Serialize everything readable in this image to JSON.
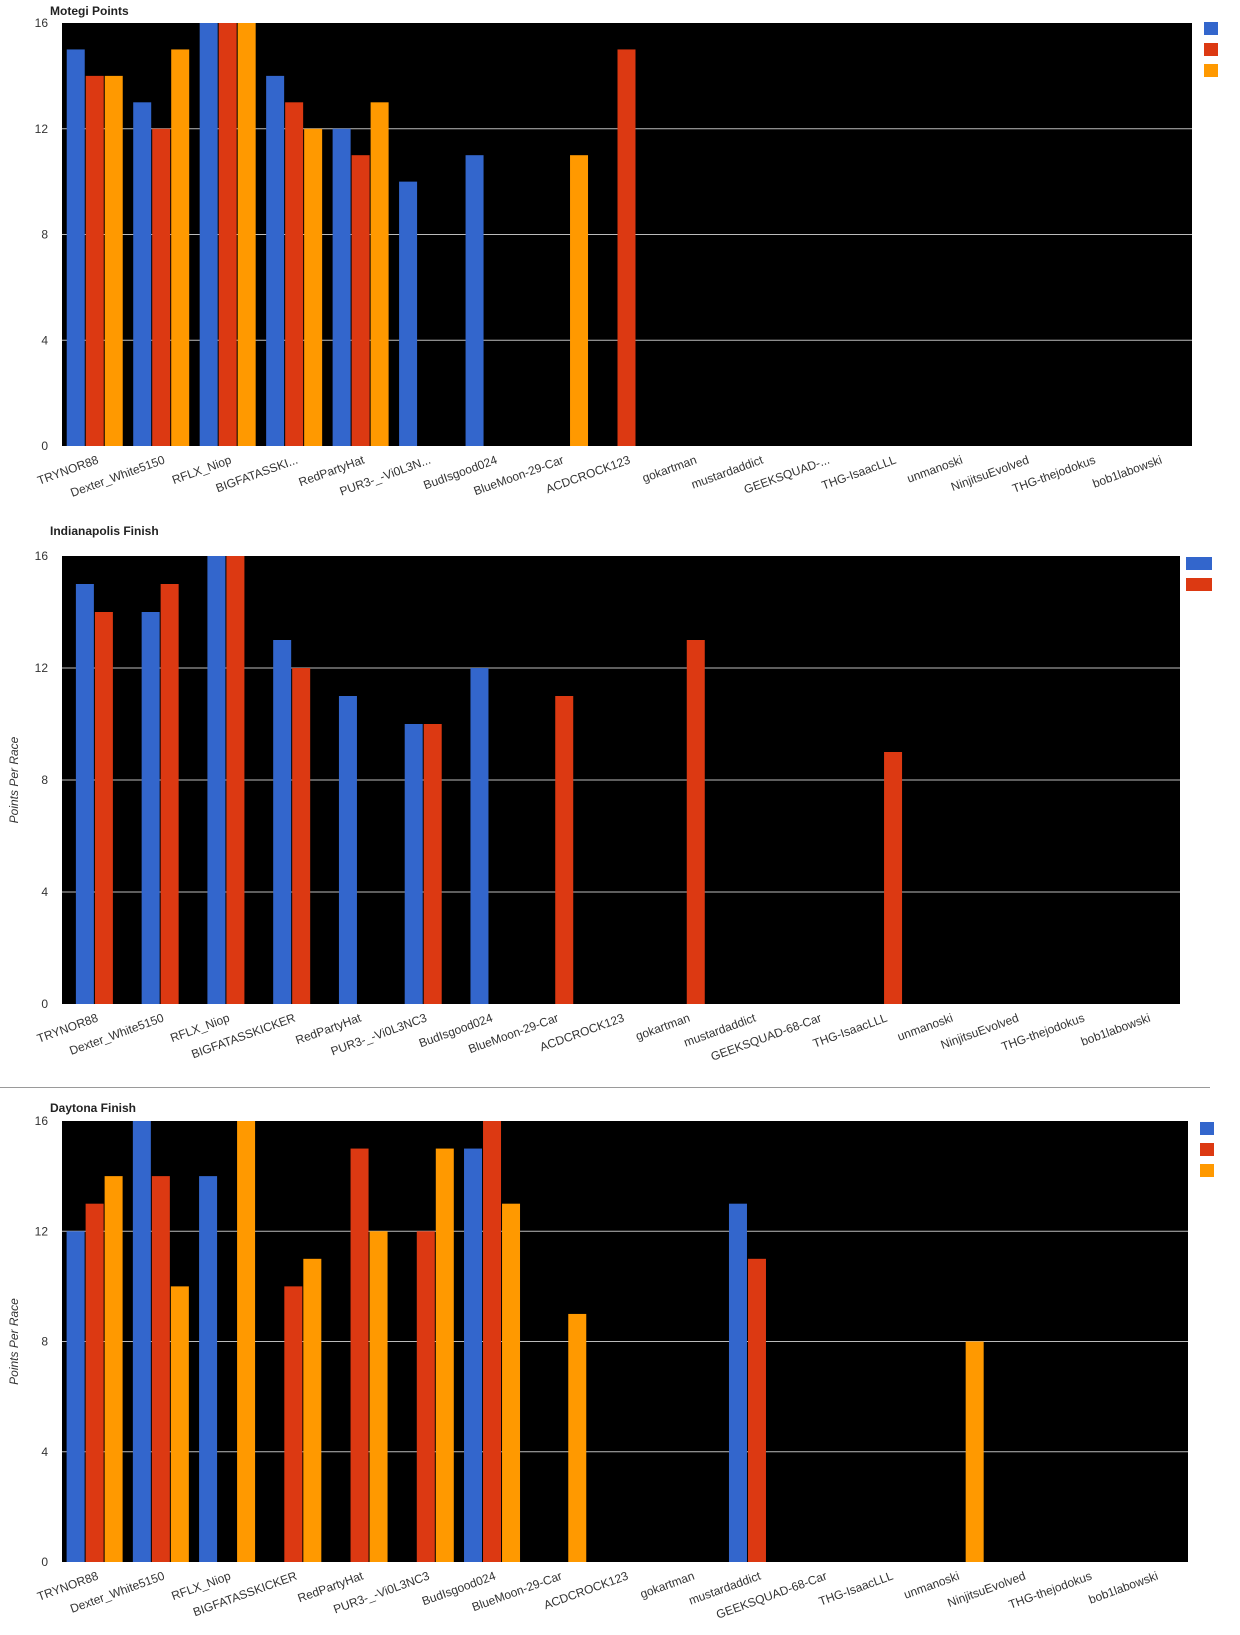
{
  "chart_data": [
    {
      "type": "bar",
      "title": "Motegi Points",
      "xlabel": "",
      "ylabel": "",
      "ylim": [
        0,
        16
      ],
      "yticks": [
        0,
        4,
        8,
        12,
        16
      ],
      "grid": true,
      "legend": "top-right",
      "categories": [
        "TRYNOR88",
        "Dexter_White5150",
        "RFLX_Niop",
        "BIGFATASSKI...",
        "RedPartyHat",
        "PUR3-_-Vi0L3N...",
        "BudIsgood024",
        "BlueMoon-29-Car",
        "ACDCROCK123",
        "gokartman",
        "mustardaddict",
        "GEEKSQUAD-...",
        "THG-IsaacLLL",
        "unmanoski",
        "NinjitsuEvolved",
        "THG-thejodokus",
        "bob1labowski"
      ],
      "series": [
        {
          "values": [
            15,
            13,
            16,
            14,
            12,
            10,
            11,
            0,
            0,
            0,
            0,
            0,
            0,
            0,
            0,
            0,
            0
          ]
        },
        {
          "values": [
            14,
            12,
            16,
            13,
            11,
            0,
            0,
            0,
            15,
            0,
            0,
            0,
            0,
            0,
            0,
            0,
            0
          ]
        },
        {
          "values": [
            14,
            15,
            16,
            12,
            13,
            0,
            0,
            11,
            0,
            0,
            0,
            0,
            0,
            0,
            0,
            0,
            0
          ]
        }
      ]
    },
    {
      "type": "bar",
      "title": "Indianapolis Finish",
      "xlabel": "",
      "ylabel": "Points Per Race",
      "ylim": [
        0,
        16
      ],
      "yticks": [
        0,
        4,
        8,
        12,
        16
      ],
      "grid": true,
      "legend": "top-right",
      "categories": [
        "TRYNOR88",
        "Dexter_White5150",
        "RFLX_Niop",
        "BIGFATASSKICKER",
        "RedPartyHat",
        "PUR3-_-Vi0L3NC3",
        "BudIsgood024",
        "BlueMoon-29-Car",
        "ACDCROCK123",
        "gokartman",
        "mustardaddict",
        "GEEKSQUAD-68-Car",
        "THG-IsaacLLL",
        "unmanoski",
        "NinjitsuEvolved",
        "THG-thejodokus",
        "bob1labowski"
      ],
      "series": [
        {
          "values": [
            15,
            14,
            16,
            13,
            11,
            10,
            12,
            0,
            0,
            0,
            0,
            0,
            0,
            0,
            0,
            0,
            0
          ]
        },
        {
          "values": [
            14,
            15,
            16,
            12,
            0,
            10,
            0,
            11,
            0,
            13,
            0,
            0,
            9,
            0,
            0,
            0,
            0
          ]
        }
      ]
    },
    {
      "type": "bar",
      "title": "Daytona Finish",
      "xlabel": "",
      "ylabel": "Points Per Race",
      "ylim": [
        0,
        16
      ],
      "yticks": [
        0,
        4,
        8,
        12,
        16
      ],
      "grid": true,
      "legend": "top-right",
      "categories": [
        "TRYNOR88",
        "Dexter_White5150",
        "RFLX_Niop",
        "BIGFATASSKICKER",
        "RedPartyHat",
        "PUR3-_-Vi0L3NC3",
        "BudIsgood024",
        "BlueMoon-29-Car",
        "ACDCROCK123",
        "gokartman",
        "mustardaddict",
        "GEEKSQUAD-68-Car",
        "THG-IsaacLLL",
        "unmanoski",
        "NinjitsuEvolved",
        "THG-thejodokus",
        "bob1labowski"
      ],
      "series": [
        {
          "values": [
            12,
            16,
            14,
            0,
            0,
            0,
            15,
            0,
            0,
            0,
            13,
            0,
            0,
            0,
            0,
            0,
            0
          ]
        },
        {
          "values": [
            13,
            14,
            0,
            10,
            15,
            12,
            16,
            0,
            0,
            0,
            11,
            0,
            0,
            0,
            0,
            0,
            0
          ]
        },
        {
          "values": [
            14,
            10,
            16,
            11,
            12,
            15,
            13,
            9,
            0,
            0,
            0,
            0,
            0,
            8,
            0,
            0,
            0
          ]
        }
      ]
    }
  ],
  "colors": {
    "series": [
      "#3366cc",
      "#dc3912",
      "#ff9900"
    ],
    "plot_background": "#000000",
    "grid": "#bbbbbb"
  }
}
